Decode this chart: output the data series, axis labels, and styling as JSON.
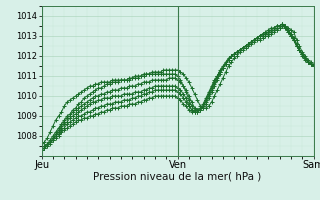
{
  "bg_color": "#d8f0e8",
  "grid_major_color": "#b0d8c0",
  "grid_minor_color": "#c8e8d8",
  "line_color": "#1a6e2a",
  "marker_color": "#1a6e2a",
  "xlabel": "Pression niveau de la mer( hPa )",
  "xlabel_fontsize": 7.5,
  "ylim": [
    1007.0,
    1014.5
  ],
  "yticks": [
    1008,
    1009,
    1010,
    1011,
    1012,
    1013,
    1014
  ],
  "xtick_labels": [
    "Jeu",
    "Ven",
    "Sam"
  ],
  "xtick_positions": [
    0.0,
    0.5,
    1.0
  ],
  "vline_positions": [
    0.0,
    0.5,
    1.0
  ],
  "n_points": 97,
  "series": [
    [
      1007.3,
      1007.4,
      1007.6,
      1007.8,
      1008.0,
      1008.2,
      1008.4,
      1008.6,
      1008.8,
      1009.0,
      1009.1,
      1009.3,
      1009.4,
      1009.6,
      1009.7,
      1009.9,
      1010.0,
      1010.1,
      1010.2,
      1010.3,
      1010.4,
      1010.4,
      1010.5,
      1010.6,
      1010.6,
      1010.7,
      1010.7,
      1010.7,
      1010.8,
      1010.8,
      1010.8,
      1010.8,
      1010.9,
      1010.9,
      1010.9,
      1011.0,
      1011.0,
      1011.1,
      1011.1,
      1011.2,
      1011.2,
      1011.2,
      1011.2,
      1011.3,
      1011.3,
      1011.3,
      1011.3,
      1011.3,
      1011.3,
      1011.2,
      1011.1,
      1010.9,
      1010.7,
      1010.4,
      1010.1,
      1009.8,
      1009.5,
      1009.4,
      1009.4,
      1009.5,
      1009.7,
      1010.0,
      1010.3,
      1010.6,
      1010.9,
      1011.2,
      1011.5,
      1011.7,
      1011.9,
      1012.0,
      1012.2,
      1012.3,
      1012.4,
      1012.5,
      1012.6,
      1012.7,
      1012.8,
      1012.8,
      1012.9,
      1013.0,
      1013.0,
      1013.1,
      1013.2,
      1013.3,
      1013.4,
      1013.5,
      1013.5,
      1013.4,
      1013.3,
      1013.2,
      1012.8,
      1012.5,
      1012.2,
      1012.0,
      1011.8,
      1011.7,
      1011.6
    ],
    [
      1007.3,
      1007.4,
      1007.5,
      1007.7,
      1007.9,
      1008.1,
      1008.3,
      1008.5,
      1008.7,
      1008.9,
      1009.0,
      1009.2,
      1009.3,
      1009.4,
      1009.5,
      1009.6,
      1009.7,
      1009.8,
      1009.9,
      1010.0,
      1010.0,
      1010.1,
      1010.1,
      1010.2,
      1010.2,
      1010.3,
      1010.3,
      1010.3,
      1010.4,
      1010.4,
      1010.4,
      1010.5,
      1010.5,
      1010.5,
      1010.6,
      1010.6,
      1010.7,
      1010.7,
      1010.7,
      1010.8,
      1010.8,
      1010.8,
      1010.8,
      1010.8,
      1010.8,
      1010.9,
      1010.9,
      1010.9,
      1010.8,
      1010.7,
      1010.5,
      1010.3,
      1010.0,
      1009.7,
      1009.4,
      1009.3,
      1009.3,
      1009.4,
      1009.6,
      1009.9,
      1010.2,
      1010.5,
      1010.8,
      1011.1,
      1011.4,
      1011.6,
      1011.8,
      1012.0,
      1012.1,
      1012.2,
      1012.3,
      1012.4,
      1012.5,
      1012.6,
      1012.7,
      1012.8,
      1012.9,
      1013.0,
      1013.0,
      1013.1,
      1013.2,
      1013.2,
      1013.3,
      1013.4,
      1013.5,
      1013.6,
      1013.5,
      1013.3,
      1013.1,
      1012.9,
      1012.6,
      1012.3,
      1012.1,
      1011.9,
      1011.7,
      1011.6,
      1011.5
    ],
    [
      1007.3,
      1007.4,
      1007.5,
      1007.6,
      1007.8,
      1008.0,
      1008.2,
      1008.4,
      1008.6,
      1008.7,
      1008.9,
      1009.0,
      1009.1,
      1009.2,
      1009.3,
      1009.4,
      1009.5,
      1009.6,
      1009.7,
      1009.7,
      1009.8,
      1009.8,
      1009.9,
      1009.9,
      1009.9,
      1010.0,
      1010.0,
      1010.0,
      1010.0,
      1010.1,
      1010.1,
      1010.1,
      1010.1,
      1010.2,
      1010.2,
      1010.2,
      1010.3,
      1010.3,
      1010.4,
      1010.4,
      1010.5,
      1010.5,
      1010.5,
      1010.5,
      1010.5,
      1010.5,
      1010.5,
      1010.5,
      1010.4,
      1010.3,
      1010.1,
      1009.9,
      1009.6,
      1009.3,
      1009.2,
      1009.2,
      1009.3,
      1009.5,
      1009.8,
      1010.1,
      1010.4,
      1010.7,
      1011.0,
      1011.3,
      1011.5,
      1011.7,
      1011.9,
      1012.0,
      1012.1,
      1012.2,
      1012.3,
      1012.4,
      1012.5,
      1012.6,
      1012.7,
      1012.8,
      1012.9,
      1013.0,
      1013.1,
      1013.1,
      1013.2,
      1013.3,
      1013.4,
      1013.5,
      1013.5,
      1013.6,
      1013.5,
      1013.3,
      1013.1,
      1012.9,
      1012.6,
      1012.3,
      1012.1,
      1011.9,
      1011.7,
      1011.6,
      1011.5
    ],
    [
      1007.4,
      1007.5,
      1007.6,
      1007.7,
      1007.8,
      1008.0,
      1008.1,
      1008.3,
      1008.4,
      1008.6,
      1008.7,
      1008.8,
      1008.9,
      1009.0,
      1009.0,
      1009.1,
      1009.2,
      1009.2,
      1009.3,
      1009.4,
      1009.4,
      1009.5,
      1009.5,
      1009.6,
      1009.6,
      1009.6,
      1009.7,
      1009.7,
      1009.7,
      1009.8,
      1009.8,
      1009.8,
      1009.9,
      1009.9,
      1010.0,
      1010.0,
      1010.1,
      1010.1,
      1010.2,
      1010.2,
      1010.3,
      1010.3,
      1010.3,
      1010.3,
      1010.3,
      1010.3,
      1010.3,
      1010.3,
      1010.2,
      1010.1,
      1009.9,
      1009.7,
      1009.5,
      1009.3,
      1009.2,
      1009.2,
      1009.3,
      1009.5,
      1009.8,
      1010.1,
      1010.4,
      1010.7,
      1011.0,
      1011.2,
      1011.4,
      1011.6,
      1011.8,
      1012.0,
      1012.1,
      1012.2,
      1012.3,
      1012.4,
      1012.5,
      1012.6,
      1012.7,
      1012.8,
      1012.9,
      1013.0,
      1013.1,
      1013.1,
      1013.2,
      1013.3,
      1013.4,
      1013.5,
      1013.5,
      1013.6,
      1013.5,
      1013.3,
      1013.0,
      1012.8,
      1012.5,
      1012.3,
      1012.1,
      1011.9,
      1011.7,
      1011.6,
      1011.5
    ],
    [
      1007.4,
      1007.5,
      1007.6,
      1007.7,
      1007.8,
      1007.9,
      1008.0,
      1008.2,
      1008.3,
      1008.4,
      1008.5,
      1008.6,
      1008.7,
      1008.8,
      1008.8,
      1008.9,
      1008.9,
      1009.0,
      1009.0,
      1009.1,
      1009.1,
      1009.2,
      1009.2,
      1009.3,
      1009.3,
      1009.4,
      1009.4,
      1009.4,
      1009.5,
      1009.5,
      1009.5,
      1009.6,
      1009.6,
      1009.6,
      1009.7,
      1009.7,
      1009.8,
      1009.8,
      1009.9,
      1009.9,
      1010.0,
      1010.0,
      1010.0,
      1010.0,
      1010.0,
      1010.0,
      1010.0,
      1010.0,
      1009.9,
      1009.8,
      1009.6,
      1009.5,
      1009.3,
      1009.2,
      1009.2,
      1009.2,
      1009.4,
      1009.6,
      1009.9,
      1010.2,
      1010.5,
      1010.8,
      1011.0,
      1011.2,
      1011.4,
      1011.6,
      1011.8,
      1012.0,
      1012.1,
      1012.2,
      1012.3,
      1012.4,
      1012.5,
      1012.6,
      1012.7,
      1012.8,
      1012.9,
      1013.0,
      1013.1,
      1013.2,
      1013.3,
      1013.4,
      1013.4,
      1013.5,
      1013.5,
      1013.6,
      1013.4,
      1013.2,
      1013.0,
      1012.8,
      1012.5,
      1012.3,
      1012.1,
      1011.9,
      1011.7,
      1011.6,
      1011.5
    ],
    [
      1007.5,
      1007.7,
      1007.9,
      1008.2,
      1008.5,
      1008.8,
      1009.0,
      1009.2,
      1009.5,
      1009.7,
      1009.8,
      1009.9,
      1010.0,
      1010.1,
      1010.2,
      1010.3,
      1010.4,
      1010.5,
      1010.5,
      1010.6,
      1010.6,
      1010.7,
      1010.7,
      1010.7,
      1010.7,
      1010.8,
      1010.8,
      1010.8,
      1010.8,
      1010.8,
      1010.8,
      1010.9,
      1010.9,
      1011.0,
      1011.0,
      1011.0,
      1011.1,
      1011.1,
      1011.1,
      1011.1,
      1011.1,
      1011.1,
      1011.1,
      1011.1,
      1011.1,
      1011.1,
      1011.1,
      1011.1,
      1011.0,
      1010.8,
      1010.5,
      1010.2,
      1009.8,
      1009.5,
      1009.3,
      1009.3,
      1009.4,
      1009.5,
      1009.7,
      1010.0,
      1010.3,
      1010.6,
      1010.9,
      1011.2,
      1011.4,
      1011.6,
      1011.8,
      1012.0,
      1012.1,
      1012.2,
      1012.3,
      1012.4,
      1012.5,
      1012.6,
      1012.7,
      1012.8,
      1012.9,
      1013.0,
      1013.0,
      1013.1,
      1013.1,
      1013.2,
      1013.3,
      1013.3,
      1013.4,
      1013.5,
      1013.4,
      1013.2,
      1013.0,
      1012.8,
      1012.5,
      1012.3,
      1012.0,
      1011.8,
      1011.7,
      1011.6,
      1011.5
    ]
  ]
}
